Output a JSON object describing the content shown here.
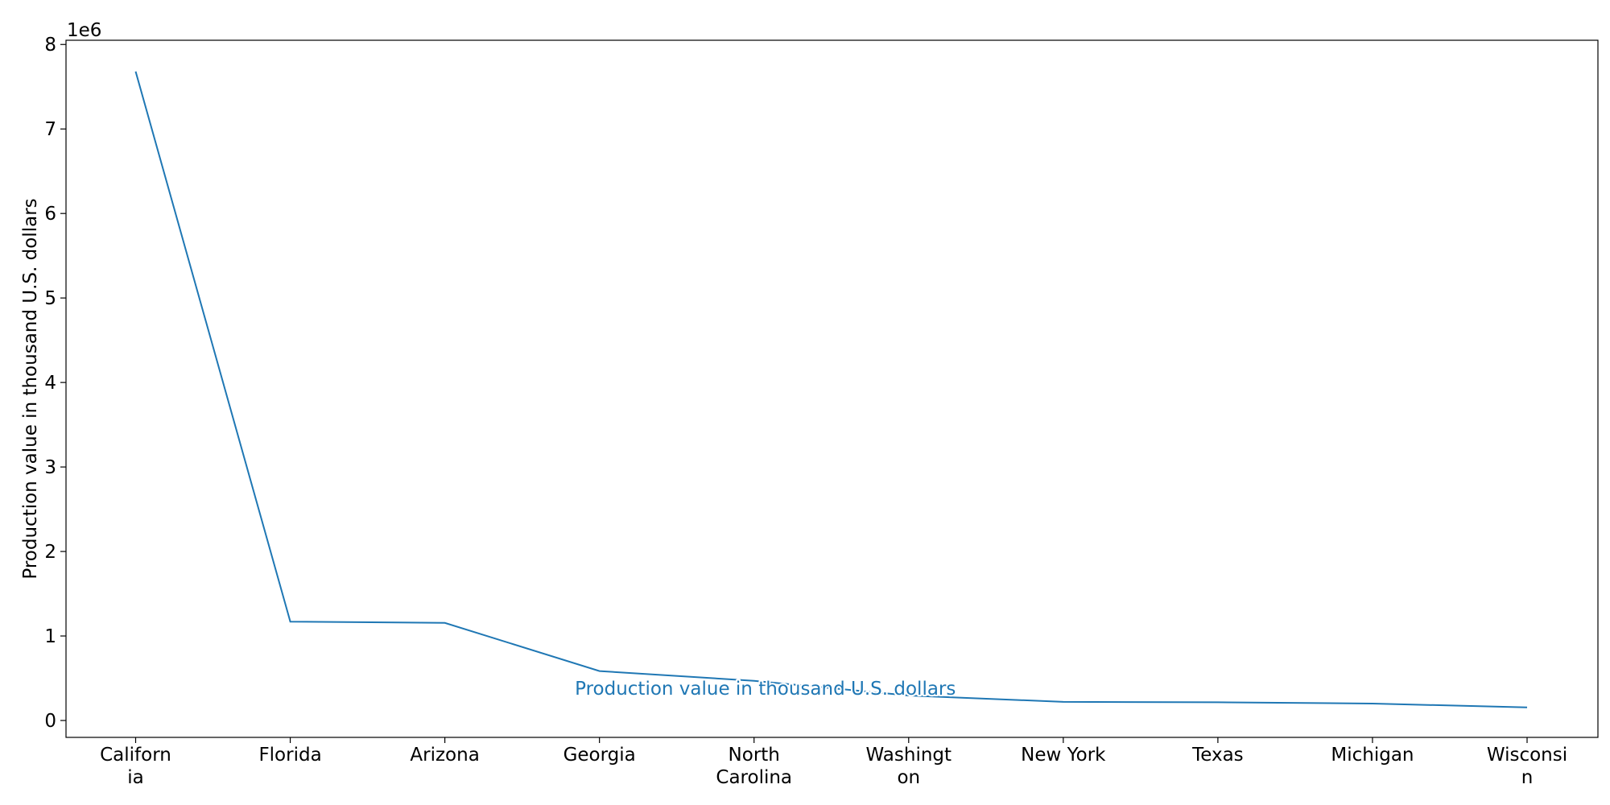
{
  "chart_data": {
    "type": "line",
    "categories": [
      [
        "Californ",
        "ia"
      ],
      [
        "Florida"
      ],
      [
        "Arizona"
      ],
      [
        "Georgia"
      ],
      [
        "North",
        "Carolina"
      ],
      [
        "Washingt",
        "on"
      ],
      [
        "New York"
      ],
      [
        "Texas"
      ],
      [
        "Michigan"
      ],
      [
        "Wisconsi",
        "n"
      ]
    ],
    "series": [
      {
        "name": "Production value in thousand U.S. dollars",
        "values": [
          7680000,
          1170000,
          1155000,
          585000,
          470000,
          295000,
          220000,
          215000,
          200000,
          155000
        ],
        "color": "#1f77b4"
      }
    ],
    "ylabel": "Production value in thousand U.S. dollars",
    "xlabel": "",
    "ylim": [
      -200000,
      8050000
    ],
    "yticks": [
      0,
      1,
      2,
      3,
      4,
      5,
      6,
      7,
      8
    ],
    "y_offset_label": "1e6",
    "grid": false,
    "legend": "inline label on line"
  }
}
